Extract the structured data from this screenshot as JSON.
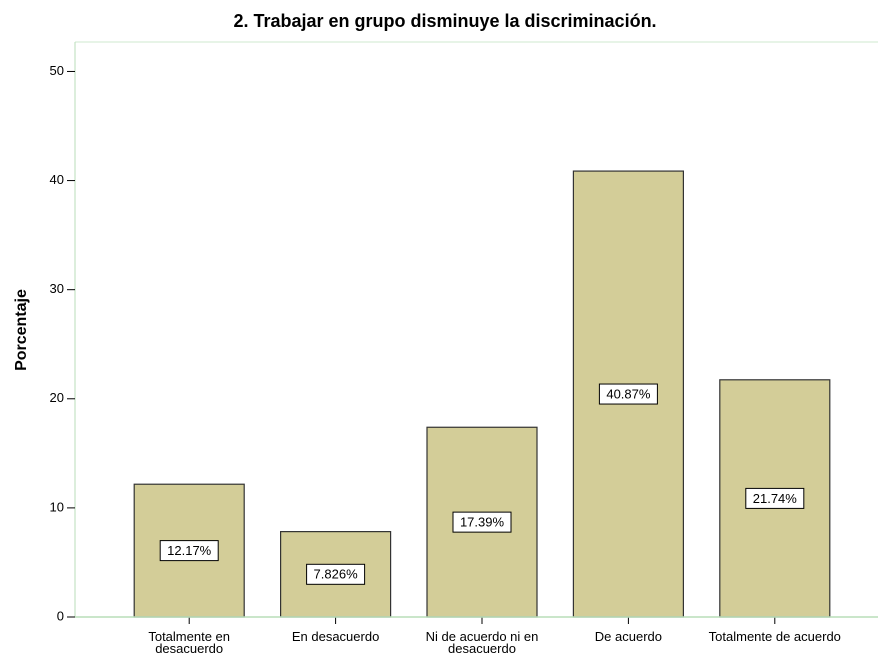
{
  "chart_data": {
    "type": "bar",
    "title": "2. Trabajar en grupo disminuye la discriminación.",
    "y_label": "Porcentaje",
    "categories": [
      "Totalmente en desacuerdo",
      "En desacuerdo",
      "Ni de acuerdo ni en desacuerdo",
      "De acuerdo",
      "Totalmente de acuerdo"
    ],
    "values": [
      12.17,
      7.826,
      17.39,
      40.87,
      21.74
    ],
    "value_labels": [
      "12.17%",
      "7.826%",
      "17.39%",
      "40.87%",
      "21.74%"
    ],
    "color": "#d3cd98",
    "ylim": [
      0,
      52.7
    ],
    "yticks": [
      0,
      10,
      20,
      30,
      40,
      50
    ],
    "grid": false
  }
}
